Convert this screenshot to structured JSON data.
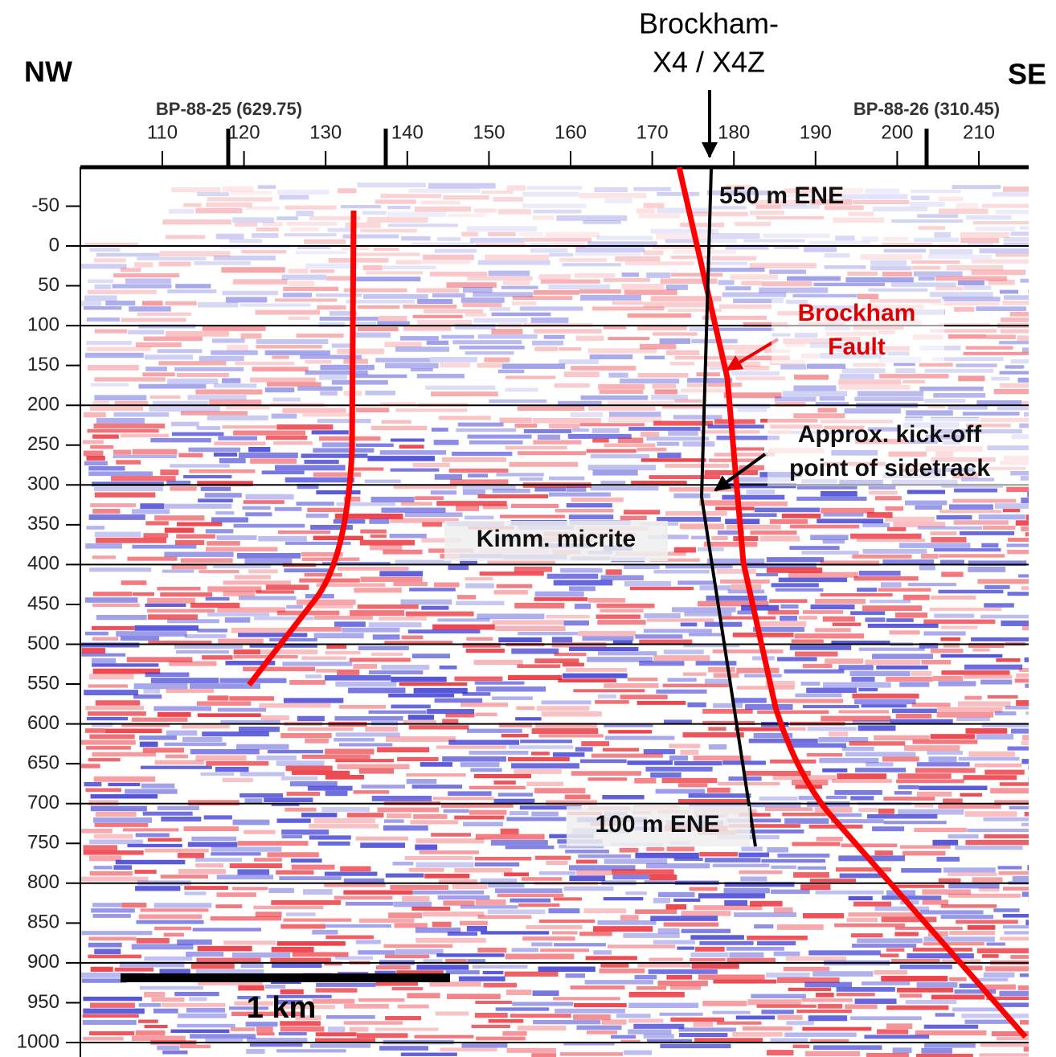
{
  "header": {
    "left": "NW",
    "right": "SE",
    "well": [
      "Brockham-",
      "X4 / X4Z"
    ]
  },
  "top_axis": {
    "ticks": [
      110,
      120,
      130,
      140,
      150,
      160,
      170,
      180,
      190,
      200,
      210
    ],
    "lines": [
      "BP-88-25 (629.75)",
      "BP-88-26 (310.45)"
    ]
  },
  "left_axis": {
    "ticks": [
      -50,
      0,
      50,
      100,
      150,
      200,
      250,
      300,
      350,
      400,
      450,
      500,
      550,
      600,
      650,
      700,
      750,
      800,
      850,
      900,
      950,
      1000
    ]
  },
  "annotations": {
    "well_top": "550 m ENE",
    "fault": [
      "Brockham",
      "Fault"
    ],
    "kickoff": [
      "Approx. kick-off",
      "point of sidetrack"
    ],
    "horizon": "Kimm. micrite",
    "well_bottom": "100 m ENE"
  },
  "scale_bar": "1 km"
}
